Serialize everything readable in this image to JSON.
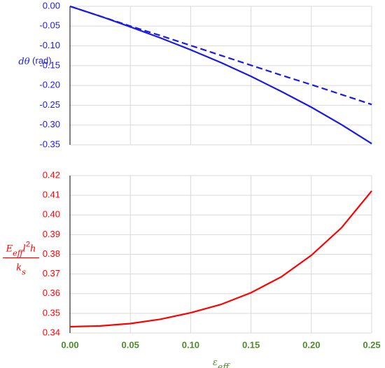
{
  "chart_data": [
    {
      "type": "line",
      "y_label": [
        {
          "text": "dθ",
          "italic": true
        },
        {
          "text": " (rad)"
        }
      ],
      "x": [
        0,
        0.025,
        0.05,
        0.075,
        0.1,
        0.125,
        0.15,
        0.175,
        0.2,
        0.225,
        0.25
      ],
      "series": [
        {
          "color": "#1a1ae6",
          "values": [
            0,
            -0.025,
            -0.052,
            -0.08,
            -0.11,
            -0.142,
            -0.177,
            -0.215,
            -0.255,
            -0.299,
            -0.347
          ]
        },
        {
          "color": "#1a1ae6",
          "dashed": true,
          "values": [
            0,
            -0.025,
            -0.05,
            -0.074,
            -0.099,
            -0.124,
            -0.149,
            -0.174,
            -0.198,
            -0.223,
            -0.248
          ]
        }
      ],
      "xlim": [
        0,
        0.25
      ],
      "xticks": [
        0,
        0.05,
        0.1,
        0.15,
        0.2,
        0.25
      ],
      "show_xtick_labels": false,
      "ylim": [
        -0.35,
        0
      ],
      "yticks": [
        {
          "value": 0,
          "label": "0.00"
        },
        {
          "value": -0.05,
          "label": "-0.05"
        },
        {
          "value": -0.1,
          "label": "-0.10"
        },
        {
          "value": -0.15,
          "label": "-0.15"
        },
        {
          "value": -0.2,
          "label": "-0.20"
        },
        {
          "value": -0.25,
          "label": "-0.25"
        },
        {
          "value": -0.3,
          "label": "-0.30"
        },
        {
          "value": -0.35,
          "label": "-0.35"
        }
      ],
      "ytick_color": "#1a1ae6",
      "grid": true
    },
    {
      "type": "line",
      "y_label_fraction": {
        "numerator": [
          {
            "text": "E",
            "italic": true
          },
          {
            "text": "eff",
            "italic": true,
            "shift": "sub"
          },
          {
            "text": "l",
            "italic": true
          },
          {
            "text": "2",
            "shift": "sup"
          },
          {
            "text": "h",
            "italic": true
          }
        ],
        "denominator": [
          {
            "text": "k",
            "italic": true
          },
          {
            "text": "s",
            "italic": true,
            "shift": "sub"
          }
        ]
      },
      "x_label": [
        {
          "text": "ε",
          "italic": true
        },
        {
          "text": "eff",
          "italic": true,
          "shift": "sub"
        }
      ],
      "x": [
        0,
        0.025,
        0.05,
        0.075,
        0.1,
        0.125,
        0.15,
        0.175,
        0.2,
        0.225,
        0.25
      ],
      "series": [
        {
          "color": "#ff0000",
          "values": [
            0.3432,
            0.3436,
            0.3448,
            0.347,
            0.3503,
            0.3545,
            0.3605,
            0.3685,
            0.3795,
            0.3935,
            0.4122
          ]
        }
      ],
      "xlim": [
        0,
        0.25
      ],
      "xticks": [
        {
          "value": 0,
          "label": "0.00"
        },
        {
          "value": 0.05,
          "label": "0.05"
        },
        {
          "value": 0.1,
          "label": "0.10"
        },
        {
          "value": 0.15,
          "label": "0.15"
        },
        {
          "value": 0.2,
          "label": "0.20"
        },
        {
          "value": 0.25,
          "label": "0.25"
        }
      ],
      "show_xtick_labels": true,
      "xtick_color": "#4f8a2b",
      "ylim": [
        0.34,
        0.42
      ],
      "yticks": [
        0.34,
        0.35,
        0.36,
        0.37,
        0.38,
        0.39,
        {
          "value": 0.4,
          "label": "0.40"
        },
        0.41,
        0.42
      ],
      "ytick_color": "#ff0000",
      "grid": true
    }
  ]
}
